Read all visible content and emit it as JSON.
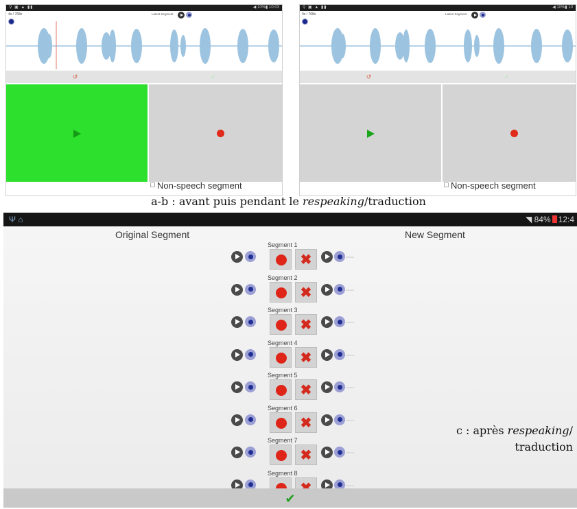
{
  "shot_a": {
    "timecode": "4s / 768s",
    "latest_label": "Latest Segment",
    "non_speech": "Non-speech segment",
    "undo_icon": "undo-icon",
    "check_icon": "check-icon"
  },
  "shot_b": {
    "timecode": "0s / 768s",
    "latest_label": "Latest Segment",
    "non_speech": "Non-speech segment"
  },
  "caption_top": {
    "prefix": "a-b : avant puis pendant le ",
    "italic": "respeaking",
    "suffix": "/traduction"
  },
  "tablet": {
    "status_battery": "84%",
    "status_time": "12:4",
    "original_header": "Original Segment",
    "new_header": "New Segment",
    "segments": [
      "Segment 1",
      "Segment 2",
      "Segment 3",
      "Segment 4",
      "Segment 5",
      "Segment 6",
      "Segment 7",
      "Segment 8"
    ],
    "delete_glyph": "✖",
    "confirm_glyph": "✔",
    "caption_line1_prefix": "c : après ",
    "caption_line1_italic": "respeaking",
    "caption_line1_suffix": "/",
    "caption_line2": "traduction"
  },
  "colors": {
    "play_green": "#22e022",
    "record_red": "#de2518",
    "wave_blue": "#9cc4e0",
    "confirm_green": "#1e9e1e"
  }
}
